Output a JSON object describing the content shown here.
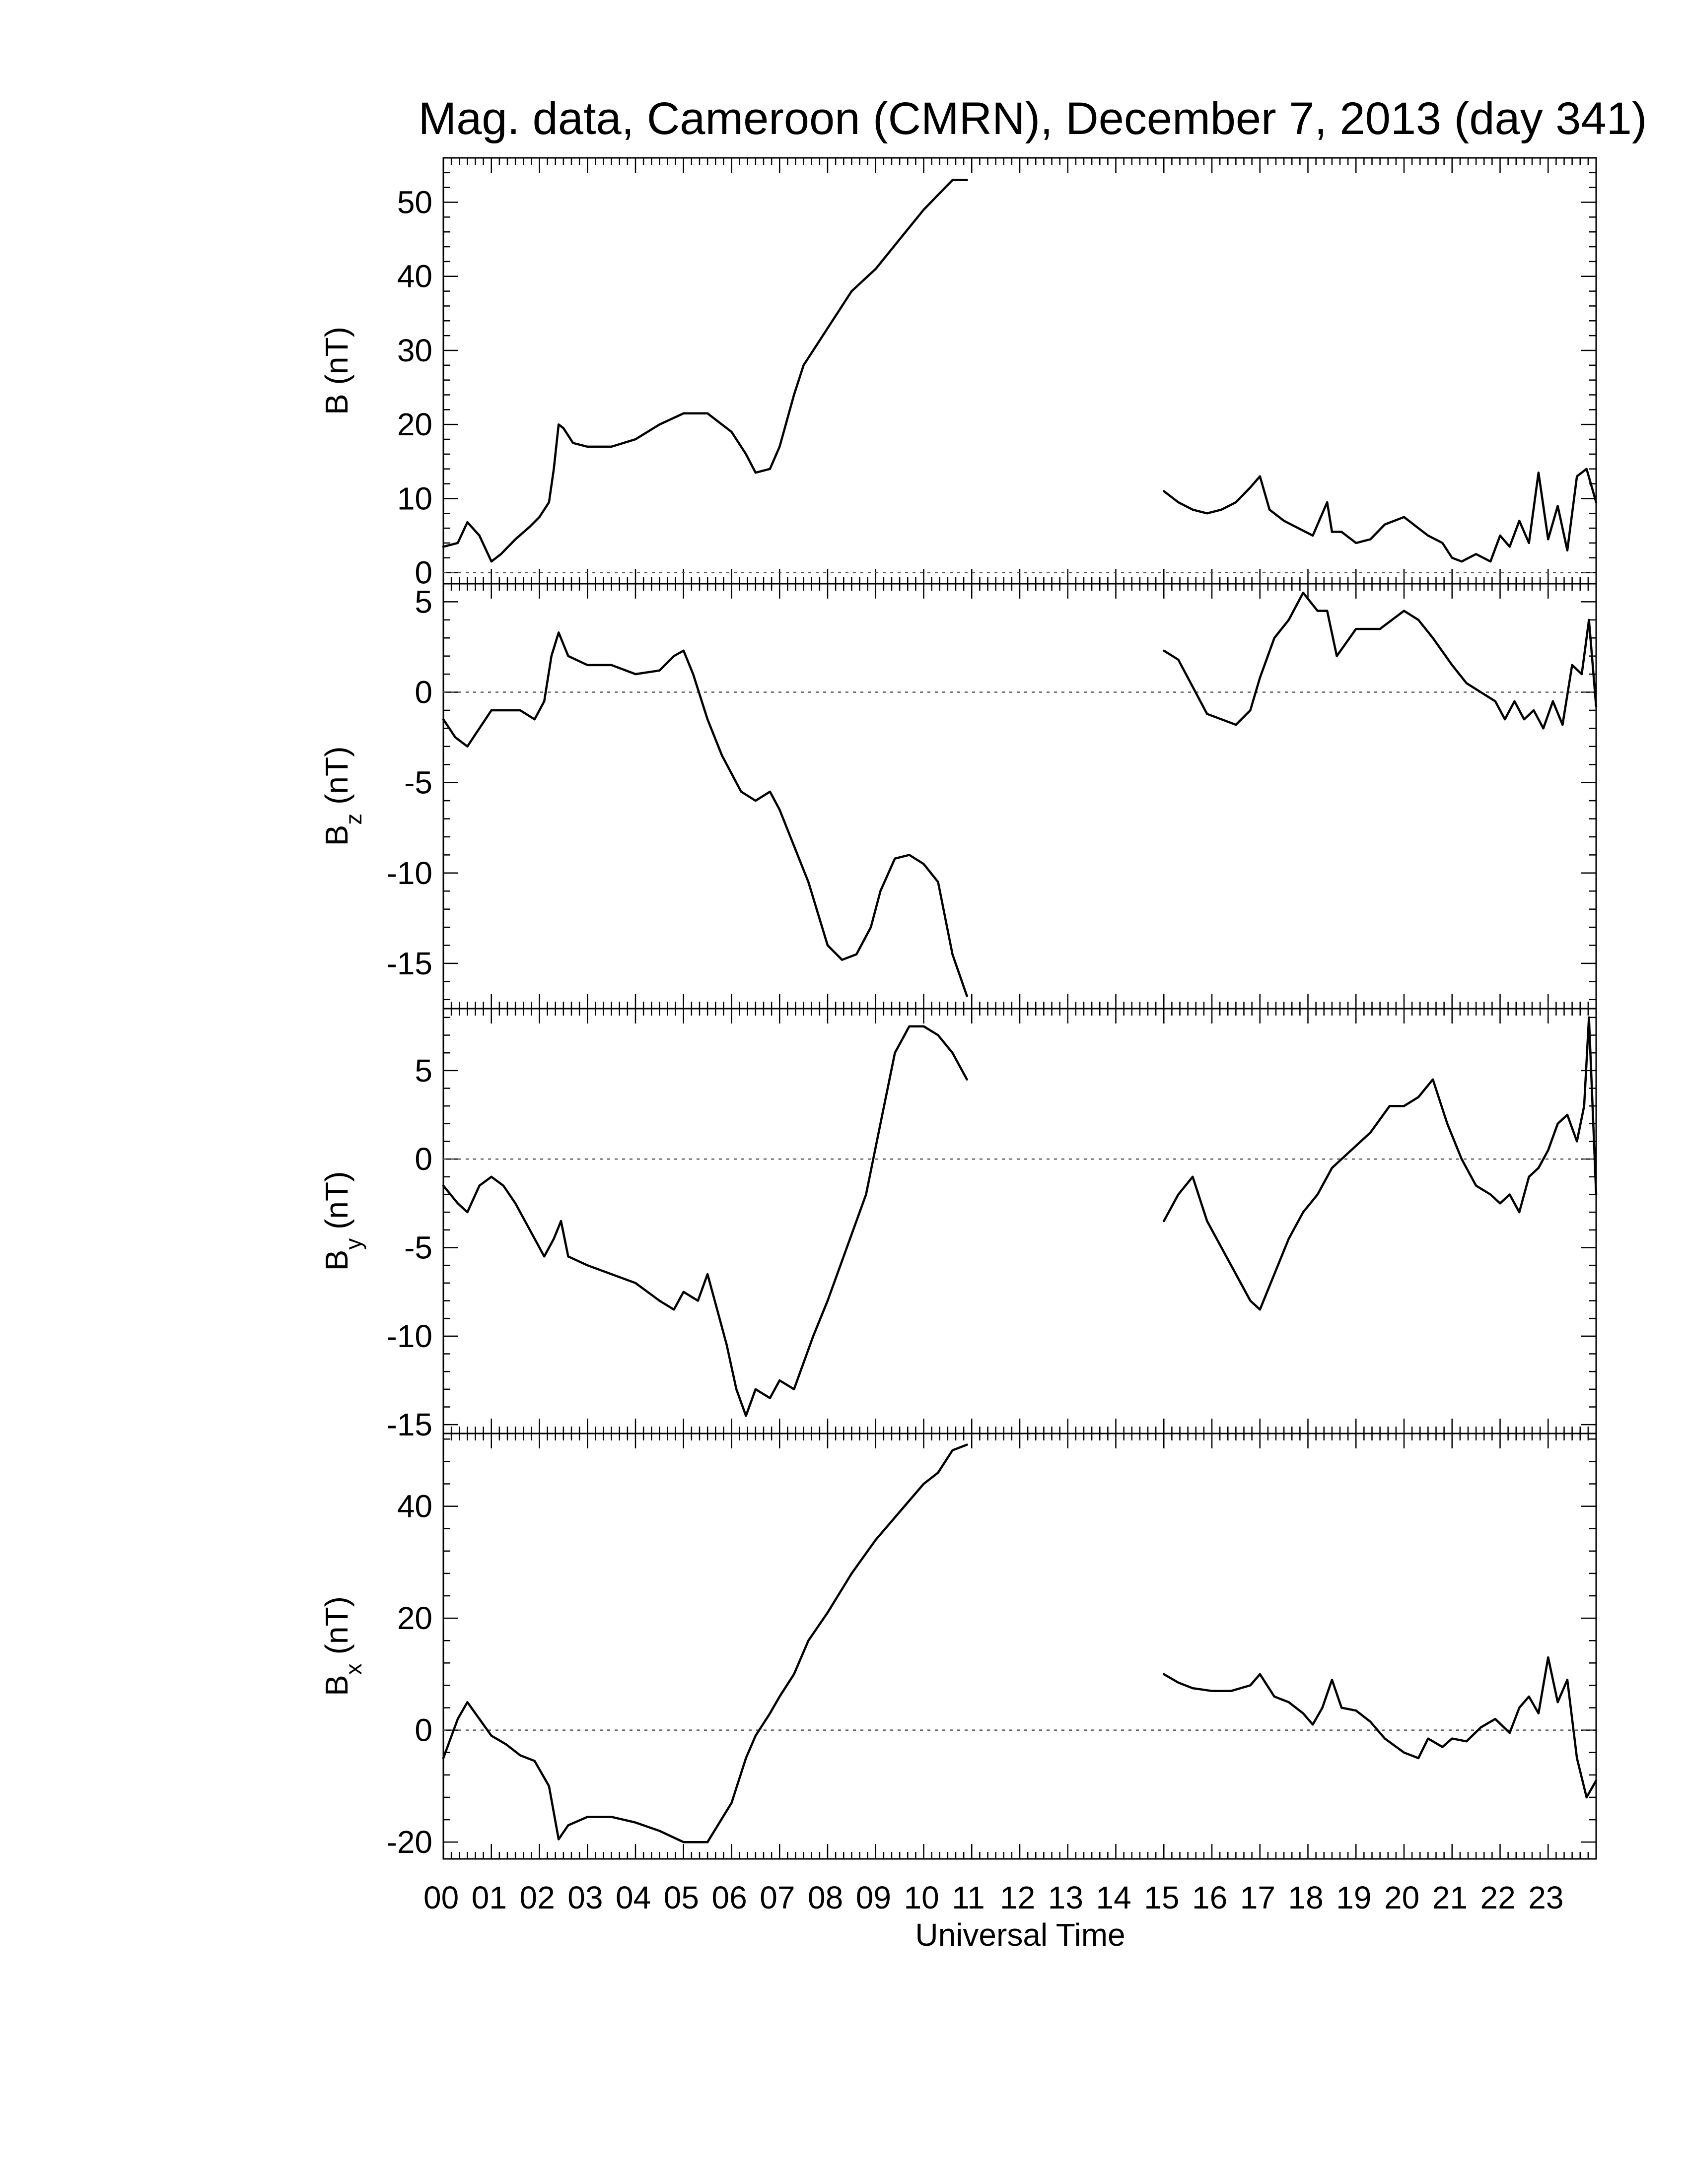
{
  "title": "Mag. data, Cameroon (CMRN), December 7, 2013 (day 341)",
  "colors": {
    "line": "#000000",
    "frame": "#000000",
    "zero_line": "#555555",
    "background": "#ffffff"
  },
  "chart_data": [
    {
      "type": "line",
      "panel": "B",
      "ylabel": {
        "main": "B",
        "sub": "",
        "unit": "(nT)"
      },
      "xlim": [
        0,
        24
      ],
      "ylim": [
        -1.5,
        56
      ],
      "yticks": [
        0,
        10,
        20,
        30,
        40,
        50
      ],
      "zero_line": true,
      "series": [
        {
          "x": [
            0.0,
            0.3,
            0.5,
            0.75,
            1.0,
            1.2,
            1.5,
            1.8,
            2.0,
            2.2,
            2.3,
            2.4,
            2.5,
            2.7,
            3.0,
            3.5,
            4.0,
            4.5,
            5.0,
            5.5,
            6.0,
            6.3,
            6.5,
            6.8,
            7.0,
            7.3,
            7.5,
            8.0,
            8.5,
            9.0,
            9.5,
            10.0,
            10.3,
            10.6,
            10.9
          ],
          "y": [
            3.5,
            4.0,
            6.8,
            5.0,
            1.5,
            2.5,
            4.5,
            6.2,
            7.5,
            9.5,
            14.0,
            20.0,
            19.5,
            17.5,
            17.0,
            17.0,
            18.0,
            20.0,
            21.5,
            21.5,
            19.0,
            16.0,
            13.5,
            14.0,
            17.0,
            24.0,
            28.0,
            33.0,
            38.0,
            41.0,
            45.0,
            49.0,
            51.0,
            53.0,
            53.0
          ]
        },
        {
          "x": [
            15.0,
            15.3,
            15.6,
            15.9,
            16.2,
            16.5,
            16.8,
            17.0,
            17.2,
            17.5,
            17.8,
            18.1,
            18.4,
            18.5,
            18.7,
            19.0,
            19.3,
            19.6,
            20.0,
            20.3,
            20.5,
            20.8,
            21.0,
            21.2,
            21.5,
            21.8,
            22.0,
            22.2,
            22.4,
            22.6,
            22.8,
            23.0,
            23.2,
            23.4,
            23.6,
            23.8,
            24.0
          ],
          "y": [
            11.0,
            9.5,
            8.5,
            8.0,
            8.5,
            9.5,
            11.5,
            13.0,
            8.5,
            7.0,
            6.0,
            5.0,
            9.5,
            5.5,
            5.5,
            4.0,
            4.5,
            6.5,
            7.5,
            6.0,
            5.0,
            4.0,
            2.0,
            1.5,
            2.5,
            1.5,
            5.0,
            3.5,
            7.0,
            4.0,
            13.5,
            4.5,
            9.0,
            3.0,
            13.0,
            14.0,
            9.5
          ]
        }
      ]
    },
    {
      "type": "line",
      "panel": "Bz",
      "ylabel": {
        "main": "B",
        "sub": "z",
        "unit": "(nT)"
      },
      "xlim": [
        0,
        24
      ],
      "ylim": [
        -17.5,
        6
      ],
      "yticks": [
        -15,
        -10,
        -5,
        0,
        5
      ],
      "zero_line": true,
      "series": [
        {
          "x": [
            0.0,
            0.25,
            0.5,
            0.75,
            1.0,
            1.3,
            1.6,
            1.9,
            2.1,
            2.25,
            2.4,
            2.6,
            3.0,
            3.5,
            4.0,
            4.5,
            4.8,
            5.0,
            5.2,
            5.5,
            5.8,
            6.2,
            6.5,
            6.8,
            7.0,
            7.3,
            7.6,
            8.0,
            8.3,
            8.6,
            8.9,
            9.1,
            9.4,
            9.7,
            10.0,
            10.3,
            10.6,
            10.9
          ],
          "y": [
            -1.5,
            -2.5,
            -3.0,
            -2.0,
            -1.0,
            -1.0,
            -1.0,
            -1.5,
            -0.5,
            2.0,
            3.3,
            2.0,
            1.5,
            1.5,
            1.0,
            1.2,
            2.0,
            2.3,
            1.0,
            -1.5,
            -3.5,
            -5.5,
            -6.0,
            -5.5,
            -6.5,
            -8.5,
            -10.5,
            -14.0,
            -14.8,
            -14.5,
            -13.0,
            -11.0,
            -9.2,
            -9.0,
            -9.5,
            -10.5,
            -14.5,
            -16.8
          ]
        },
        {
          "x": [
            15.0,
            15.3,
            15.6,
            15.9,
            16.2,
            16.5,
            16.8,
            17.0,
            17.3,
            17.6,
            17.9,
            18.2,
            18.4,
            18.6,
            19.0,
            19.5,
            20.0,
            20.3,
            20.6,
            21.0,
            21.3,
            21.6,
            21.9,
            22.1,
            22.3,
            22.5,
            22.7,
            22.9,
            23.1,
            23.3,
            23.5,
            23.7,
            23.85,
            24.0
          ],
          "y": [
            2.3,
            1.8,
            0.3,
            -1.2,
            -1.5,
            -1.8,
            -1.0,
            0.8,
            3.0,
            4.0,
            5.5,
            4.5,
            4.5,
            2.0,
            3.5,
            3.5,
            4.5,
            4.0,
            3.0,
            1.5,
            0.5,
            0.0,
            -0.5,
            -1.5,
            -0.5,
            -1.5,
            -1.0,
            -2.0,
            -0.5,
            -1.8,
            1.5,
            1.0,
            4.0,
            -0.8
          ]
        }
      ]
    },
    {
      "type": "line",
      "panel": "By",
      "ylabel": {
        "main": "B",
        "sub": "y",
        "unit": "(nT)"
      },
      "xlim": [
        0,
        24
      ],
      "ylim": [
        -15.5,
        8.5
      ],
      "yticks": [
        -15,
        -10,
        -5,
        0,
        5
      ],
      "zero_line": true,
      "series": [
        {
          "x": [
            0.0,
            0.3,
            0.5,
            0.75,
            1.0,
            1.25,
            1.5,
            1.8,
            2.1,
            2.3,
            2.45,
            2.6,
            3.0,
            3.5,
            4.0,
            4.5,
            4.8,
            5.0,
            5.3,
            5.5,
            5.7,
            5.9,
            6.1,
            6.3,
            6.5,
            6.8,
            7.0,
            7.3,
            7.7,
            8.0,
            8.4,
            8.8,
            9.1,
            9.4,
            9.7,
            10.0,
            10.3,
            10.6,
            10.9
          ],
          "y": [
            -1.5,
            -2.5,
            -3.0,
            -1.5,
            -1.0,
            -1.5,
            -2.5,
            -4.0,
            -5.5,
            -4.5,
            -3.5,
            -5.5,
            -6.0,
            -6.5,
            -7.0,
            -8.0,
            -8.5,
            -7.5,
            -8.0,
            -6.5,
            -8.5,
            -10.5,
            -13.0,
            -14.5,
            -13.0,
            -13.5,
            -12.5,
            -13.0,
            -10.0,
            -8.0,
            -5.0,
            -2.0,
            2.0,
            6.0,
            7.5,
            7.5,
            7.0,
            6.0,
            4.5
          ]
        },
        {
          "x": [
            15.0,
            15.3,
            15.6,
            15.9,
            16.2,
            16.5,
            16.8,
            17.0,
            17.3,
            17.6,
            17.9,
            18.2,
            18.5,
            18.9,
            19.3,
            19.7,
            20.0,
            20.3,
            20.6,
            20.9,
            21.2,
            21.5,
            21.8,
            22.0,
            22.2,
            22.4,
            22.6,
            22.8,
            23.0,
            23.2,
            23.4,
            23.6,
            23.75,
            23.85,
            24.0
          ],
          "y": [
            -3.5,
            -2.0,
            -1.0,
            -3.5,
            -5.0,
            -6.5,
            -8.0,
            -8.5,
            -6.5,
            -4.5,
            -3.0,
            -2.0,
            -0.5,
            0.5,
            1.5,
            3.0,
            3.0,
            3.5,
            4.5,
            2.0,
            0.0,
            -1.5,
            -2.0,
            -2.5,
            -2.0,
            -3.0,
            -1.0,
            -0.5,
            0.5,
            2.0,
            2.5,
            1.0,
            3.0,
            8.0,
            -2.0
          ]
        }
      ]
    },
    {
      "type": "line",
      "panel": "Bx",
      "ylabel": {
        "main": "B",
        "sub": "x",
        "unit": "(nT)"
      },
      "xlim": [
        0,
        24
      ],
      "ylim": [
        -23,
        53
      ],
      "yticks": [
        -20,
        0,
        20,
        40
      ],
      "zero_line": true,
      "series": [
        {
          "x": [
            0.0,
            0.3,
            0.5,
            0.75,
            1.0,
            1.3,
            1.6,
            1.9,
            2.2,
            2.4,
            2.6,
            3.0,
            3.5,
            4.0,
            4.5,
            5.0,
            5.5,
            6.0,
            6.3,
            6.5,
            6.8,
            7.0,
            7.3,
            7.6,
            8.0,
            8.5,
            9.0,
            9.5,
            10.0,
            10.3,
            10.6,
            10.9
          ],
          "y": [
            -5.0,
            2.0,
            5.0,
            2.0,
            -1.0,
            -2.5,
            -4.5,
            -5.5,
            -10.0,
            -19.5,
            -17.0,
            -15.5,
            -15.5,
            -16.5,
            -18.0,
            -20.0,
            -20.0,
            -13.0,
            -5.0,
            -1.0,
            3.0,
            6.0,
            10.0,
            16.0,
            21.0,
            28.0,
            34.0,
            39.0,
            44.0,
            46.0,
            50.0,
            51.0
          ]
        },
        {
          "x": [
            15.0,
            15.3,
            15.6,
            16.0,
            16.4,
            16.8,
            17.0,
            17.3,
            17.6,
            17.9,
            18.1,
            18.3,
            18.5,
            18.7,
            19.0,
            19.3,
            19.6,
            20.0,
            20.3,
            20.5,
            20.8,
            21.0,
            21.3,
            21.6,
            21.9,
            22.2,
            22.4,
            22.6,
            22.8,
            23.0,
            23.2,
            23.4,
            23.6,
            23.8,
            24.0
          ],
          "y": [
            10.0,
            8.5,
            7.5,
            7.0,
            7.0,
            8.0,
            10.0,
            6.0,
            5.0,
            3.0,
            1.0,
            4.0,
            9.0,
            4.0,
            3.5,
            1.5,
            -1.5,
            -4.0,
            -5.0,
            -1.5,
            -3.0,
            -1.5,
            -2.0,
            0.5,
            2.0,
            -0.5,
            4.0,
            6.0,
            3.0,
            13.0,
            5.0,
            9.0,
            -5.0,
            -12.0,
            -9.0
          ]
        }
      ]
    }
  ],
  "xaxis": {
    "xlabel": "Universal Time",
    "ticklabels": [
      "00",
      "01",
      "02",
      "03",
      "04",
      "05",
      "06",
      "07",
      "08",
      "09",
      "10",
      "11",
      "12",
      "13",
      "14",
      "15",
      "16",
      "17",
      "18",
      "19",
      "20",
      "21",
      "22",
      "23"
    ]
  }
}
